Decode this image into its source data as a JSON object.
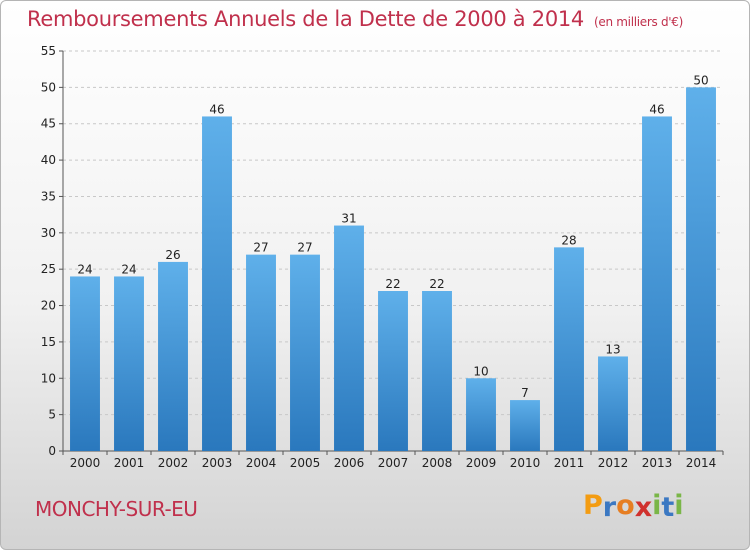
{
  "chart_data": {
    "type": "bar",
    "title": "Remboursements Annuels de la Dette de 2000 à 2014",
    "subtitle": "(en milliers d'€)",
    "categories": [
      "2000",
      "2001",
      "2002",
      "2003",
      "2004",
      "2005",
      "2006",
      "2007",
      "2008",
      "2009",
      "2010",
      "2011",
      "2012",
      "2013",
      "2014"
    ],
    "values": [
      24,
      24,
      26,
      46,
      27,
      27,
      31,
      22,
      22,
      10,
      7,
      28,
      13,
      46,
      50
    ],
    "xlabel": "",
    "ylabel": "",
    "ylim": [
      0,
      55
    ],
    "yticks": [
      0,
      5,
      10,
      15,
      20,
      25,
      30,
      35,
      40,
      45,
      50,
      55
    ],
    "grid": true,
    "bar_color": "#3a8fd4"
  },
  "footer": {
    "city": "MONCHY-SUR-EU",
    "logo_letters": [
      "P",
      "r",
      "o",
      "x",
      "i",
      "t",
      "i"
    ],
    "logo_colors": [
      "#f39c12",
      "#3b78c2",
      "#e67e22",
      "#d0312d",
      "#7ab648",
      "#3b78c2",
      "#7ab648"
    ]
  }
}
